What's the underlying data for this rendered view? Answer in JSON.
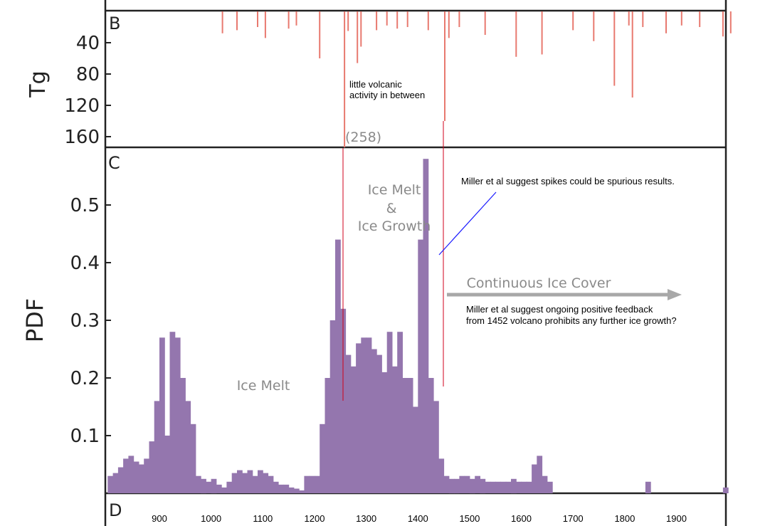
{
  "chart_data": [
    {
      "type": "bar",
      "panel": "B",
      "ylabel": "Tg",
      "yticks": [
        40,
        80,
        120,
        160
      ],
      "ylim": [
        0,
        175
      ],
      "inverted": true,
      "color": "#e8796f",
      "x": [
        1022,
        1050,
        1090,
        1105,
        1150,
        1165,
        1210,
        1258,
        1265,
        1283,
        1290,
        1320,
        1340,
        1360,
        1380,
        1420,
        1452,
        1460,
        1480,
        1530,
        1590,
        1640,
        1700,
        1740,
        1780,
        1808,
        1815,
        1835,
        1880,
        1910,
        1945,
        1990,
        2005
      ],
      "values": [
        28,
        24,
        20,
        34,
        22,
        18,
        60,
        175,
        25,
        66,
        45,
        24,
        18,
        22,
        20,
        24,
        140,
        34,
        20,
        30,
        58,
        55,
        24,
        38,
        95,
        18,
        110,
        20,
        28,
        18,
        20,
        32,
        28
      ],
      "annotation": "(258)"
    },
    {
      "type": "bar",
      "panel": "C",
      "ylabel": "PDF",
      "yticks": [
        0.1,
        0.2,
        0.3,
        0.4,
        0.5
      ],
      "ylim": [
        0.0,
        0.6
      ],
      "color": "#9476ae",
      "x": [
        800,
        810,
        820,
        830,
        840,
        850,
        860,
        870,
        880,
        890,
        900,
        910,
        920,
        930,
        940,
        950,
        960,
        970,
        980,
        990,
        1000,
        1010,
        1020,
        1030,
        1040,
        1050,
        1060,
        1070,
        1080,
        1090,
        1100,
        1110,
        1120,
        1130,
        1140,
        1150,
        1160,
        1170,
        1180,
        1190,
        1200,
        1210,
        1220,
        1230,
        1240,
        1250,
        1260,
        1270,
        1280,
        1290,
        1300,
        1310,
        1320,
        1330,
        1340,
        1350,
        1360,
        1370,
        1380,
        1390,
        1400,
        1410,
        1420,
        1430,
        1440,
        1450,
        1460,
        1470,
        1480,
        1490,
        1500,
        1510,
        1520,
        1530,
        1540,
        1550,
        1560,
        1570,
        1580,
        1590,
        1600,
        1610,
        1620,
        1630,
        1640,
        1650,
        1660,
        1670,
        1680,
        1690,
        1700,
        1710,
        1720,
        1730,
        1740,
        1750,
        1760,
        1770,
        1780,
        1790,
        1800,
        1810,
        1820,
        1830,
        1840,
        1850,
        1860,
        1870,
        1880,
        1890,
        1900,
        1910,
        1920,
        1930,
        1940,
        1950,
        1960,
        1970,
        1980,
        1990,
        2000
      ],
      "values": [
        0.03,
        0.035,
        0.045,
        0.06,
        0.065,
        0.055,
        0.05,
        0.06,
        0.09,
        0.16,
        0.27,
        0.1,
        0.28,
        0.27,
        0.2,
        0.16,
        0.12,
        0.03,
        0.025,
        0.02,
        0.025,
        0.015,
        0.01,
        0.02,
        0.035,
        0.04,
        0.035,
        0.04,
        0.03,
        0.04,
        0.035,
        0.03,
        0.02,
        0.015,
        0.015,
        0.01,
        0.008,
        0.005,
        0.03,
        0.03,
        0.03,
        0.12,
        0.2,
        0.3,
        0.44,
        0.32,
        0.24,
        0.22,
        0.26,
        0.27,
        0.27,
        0.25,
        0.24,
        0.21,
        0.28,
        0.22,
        0.28,
        0.2,
        0.2,
        0.15,
        0.44,
        0.58,
        0.2,
        0.16,
        0.06,
        0.03,
        0.025,
        0.025,
        0.03,
        0.03,
        0.025,
        0.03,
        0.025,
        0.02,
        0.02,
        0.02,
        0.02,
        0.02,
        0.025,
        0.02,
        0.02,
        0.02,
        0.05,
        0.065,
        0.03,
        0.02,
        0.0,
        0.0,
        0.0,
        0.0,
        0.0,
        0.0,
        0.0,
        0.0,
        0.0,
        0.0,
        0.0,
        0.0,
        0.0,
        0.0,
        0.0,
        0.0,
        0.0,
        0.0,
        0.02,
        0.0,
        0.0,
        0.0,
        0.0,
        0.0,
        0.0,
        0.0,
        0.0,
        0.0,
        0.0,
        0.0,
        0.0,
        0.0,
        0.0,
        0.01,
        0.0
      ]
    },
    {
      "type": "axis",
      "panel": "D",
      "xticks": [
        900,
        1000,
        1100,
        1200,
        1300,
        1400,
        1500,
        1600,
        1700,
        1800,
        1900
      ]
    }
  ],
  "labels": {
    "ice_melt_left": "Ice Melt",
    "ice_melt_growth_1": "Ice Melt",
    "ice_melt_growth_2": "&",
    "ice_melt_growth_3": "Ice Growth",
    "continuous": "Continuous Ice Cover"
  },
  "notes": {
    "volcanic_1": "little volcanic",
    "volcanic_2": "activity in between",
    "spikes": "Miller et al suggest spikes could be spurious results.",
    "feedback_1": "Miller et al suggest ongoing positive feedback",
    "feedback_2": "from 1452 volcano prohibits any further ice growth?"
  },
  "colors": {
    "volcanic_bars": "#e8796f",
    "pdf_bars": "#9476ae",
    "markers": "#d0021b",
    "pointer": "#1a1aff",
    "arrow": "#a8a8a8"
  }
}
